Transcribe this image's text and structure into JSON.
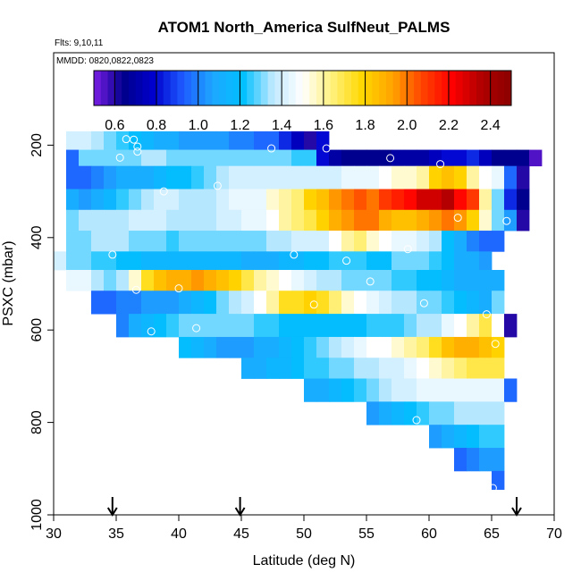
{
  "chart_data": {
    "type": "heatmap",
    "title": "ATOM1 North_America SulfNeut_PALMS",
    "subtitle": "Flts: 9,10,11",
    "annotation": "MMDD: 0820,0822,0823",
    "xlabel": "Latitude (deg N)",
    "ylabel": "PSXC (mbar)",
    "xlim": [
      30,
      70
    ],
    "ylim": [
      1000,
      0
    ],
    "x_ticks": [
      30,
      35,
      40,
      45,
      50,
      55,
      60,
      65,
      70
    ],
    "y_ticks": [
      200,
      400,
      600,
      800,
      1000
    ],
    "colorbar": {
      "range": [
        0.5,
        2.5
      ],
      "ticks": [
        0.6,
        0.8,
        1.0,
        1.2,
        1.4,
        1.6,
        1.8,
        2.0,
        2.2,
        2.4
      ],
      "colors": [
        "#7b1fe6",
        "#00008b",
        "#0000cd",
        "#1e5bff",
        "#1ea8ff",
        "#00bfff",
        "#bfe9ff",
        "#ffffff",
        "#fff07a",
        "#ffd700",
        "#ffa500",
        "#ff4500",
        "#ff0000",
        "#b00000",
        "#8b0000"
      ]
    },
    "flight_markers_lat": [
      34.7,
      44.9,
      67.0
    ],
    "bands": [
      {
        "p": [
          170,
          210
        ],
        "lats": [
          31.5,
          32.5,
          33.5,
          34.5,
          35.5,
          36.5,
          37.5,
          38.5,
          39.5,
          40.5,
          41.5,
          42.5,
          43.5,
          44.5,
          45.5,
          46.5,
          47.5,
          48.5,
          49.5,
          50.5,
          51.5
        ],
        "values": [
          1.4,
          1.4,
          1.35,
          1.3,
          1.25,
          1.2,
          1.15,
          1.1,
          1.1,
          1.05,
          1.05,
          1.05,
          1.05,
          1.0,
          1.0,
          0.95,
          0.95,
          0.85,
          0.75,
          0.6,
          0.8
        ]
      },
      {
        "p": [
          210,
          245
        ],
        "lats": [
          31.5,
          32.5,
          33.5,
          34.5,
          35.5,
          36.5,
          37.5,
          38.5,
          39.5,
          40.5,
          41.5,
          42.5,
          43.5,
          44.5,
          45.5,
          46.5,
          47.5,
          48.5,
          49.5,
          50.5,
          51.5,
          52.5,
          53.5,
          54.5,
          55.5,
          56.5,
          57.5,
          58.5,
          59.5,
          60.5,
          61.5,
          62.5,
          63.5,
          64.5,
          65.5,
          66.5,
          67.5,
          68.5
        ],
        "values": [
          0.95,
          1.3,
          1.3,
          1.3,
          1.3,
          1.3,
          1.35,
          1.35,
          1.3,
          1.3,
          1.3,
          1.3,
          1.3,
          1.3,
          1.3,
          1.3,
          1.3,
          1.3,
          1.25,
          1.25,
          0.8,
          0.7,
          0.65,
          0.65,
          0.65,
          0.65,
          0.7,
          0.7,
          0.7,
          0.75,
          0.8,
          0.8,
          0.85,
          0.75,
          0.65,
          0.65,
          0.65,
          0.55
        ]
      },
      {
        "p": [
          245,
          295
        ],
        "lats": [
          31.5,
          32.5,
          33.5,
          34.5,
          35.5,
          36.5,
          37.5,
          38.5,
          39.5,
          40.5,
          41.5,
          42.5,
          43.5,
          44.5,
          45.5,
          46.5,
          47.5,
          48.5,
          49.5,
          50.5,
          51.5,
          52.5,
          53.5,
          54.5,
          55.5,
          56.5,
          57.5,
          58.5,
          59.5,
          60.5,
          61.5,
          62.5,
          63.5,
          64.5,
          65.5,
          66.5,
          67.5
        ],
        "values": [
          0.95,
          0.95,
          1.0,
          1.05,
          1.1,
          1.1,
          1.1,
          1.15,
          1.2,
          1.2,
          1.25,
          1.3,
          1.35,
          1.4,
          1.4,
          1.4,
          1.4,
          1.4,
          1.4,
          1.4,
          1.4,
          1.4,
          1.45,
          1.45,
          1.45,
          1.5,
          1.55,
          1.55,
          1.6,
          1.8,
          1.85,
          1.8,
          1.6,
          1.5,
          1.45,
          0.95,
          0.6
        ]
      },
      {
        "p": [
          295,
          340
        ],
        "lats": [
          31.5,
          32.5,
          33.5,
          34.5,
          35.5,
          36.5,
          37.5,
          38.5,
          39.5,
          40.5,
          41.5,
          42.5,
          43.5,
          44.5,
          45.5,
          46.5,
          47.5,
          48.5,
          49.5,
          50.5,
          51.5,
          52.5,
          53.5,
          54.5,
          55.5,
          56.5,
          57.5,
          58.5,
          59.5,
          60.5,
          61.5,
          62.5,
          63.5,
          64.5,
          65.5,
          66.5,
          67.5
        ],
        "values": [
          1.1,
          1.05,
          1.1,
          1.15,
          1.25,
          1.3,
          1.35,
          1.4,
          1.4,
          1.35,
          1.35,
          1.35,
          1.4,
          1.45,
          1.45,
          1.45,
          1.55,
          1.6,
          1.65,
          1.8,
          1.85,
          1.95,
          2.0,
          2.05,
          2.0,
          2.1,
          2.15,
          2.2,
          2.3,
          2.3,
          2.35,
          2.2,
          2.1,
          1.6,
          1.3,
          0.85,
          0.65
        ]
      },
      {
        "p": [
          340,
          385
        ],
        "lats": [
          31.5,
          32.5,
          33.5,
          34.5,
          35.5,
          36.5,
          37.5,
          38.5,
          39.5,
          40.5,
          41.5,
          42.5,
          43.5,
          44.5,
          45.5,
          46.5,
          47.5,
          48.5,
          49.5,
          50.5,
          51.5,
          52.5,
          53.5,
          54.5,
          55.5,
          56.5,
          57.5,
          58.5,
          59.5,
          60.5,
          61.5,
          62.5,
          63.5,
          64.5,
          65.5,
          66.5,
          67.5
        ],
        "values": [
          1.3,
          1.35,
          1.35,
          1.35,
          1.35,
          1.4,
          1.4,
          1.4,
          1.35,
          1.35,
          1.35,
          1.35,
          1.4,
          1.4,
          1.45,
          1.45,
          1.5,
          1.6,
          1.65,
          1.7,
          1.8,
          1.9,
          1.95,
          2.0,
          2.0,
          1.9,
          1.85,
          1.85,
          1.9,
          1.95,
          2.0,
          1.95,
          1.8,
          1.55,
          1.3,
          1.05,
          0.6
        ]
      },
      {
        "p": [
          385,
          430
        ],
        "lats": [
          31.5,
          32.5,
          33.5,
          34.5,
          35.5,
          36.5,
          37.5,
          38.5,
          39.5,
          40.5,
          41.5,
          42.5,
          43.5,
          44.5,
          45.5,
          46.5,
          47.5,
          48.5,
          49.5,
          50.5,
          51.5,
          52.5,
          53.5,
          54.5,
          55.5,
          56.5,
          57.5,
          58.5,
          59.5,
          60.5,
          61.5,
          62.5,
          63.5,
          64.5,
          65.5
        ],
        "values": [
          1.3,
          1.3,
          1.35,
          1.35,
          1.35,
          1.3,
          1.3,
          1.3,
          1.25,
          1.3,
          1.3,
          1.3,
          1.3,
          1.3,
          1.3,
          1.3,
          1.35,
          1.35,
          1.4,
          1.4,
          1.4,
          1.5,
          1.6,
          1.65,
          1.55,
          1.5,
          1.45,
          1.45,
          1.4,
          1.35,
          1.2,
          1.1,
          1.0,
          0.95,
          0.95
        ]
      },
      {
        "p": [
          430,
          470
        ],
        "lats": [
          30.5,
          31.5,
          32.5,
          33.5,
          34.5,
          35.5,
          36.5,
          37.5,
          38.5,
          39.5,
          40.5,
          41.5,
          42.5,
          43.5,
          44.5,
          45.5,
          46.5,
          47.5,
          48.5,
          49.5,
          50.5,
          51.5,
          52.5,
          53.5,
          54.5,
          55.5,
          56.5,
          57.5,
          58.5,
          59.5,
          60.5,
          61.5,
          62.5,
          63.5,
          64.5
        ],
        "values": [
          1.4,
          1.3,
          1.3,
          1.25,
          1.25,
          1.2,
          1.2,
          1.15,
          1.15,
          1.15,
          1.15,
          1.15,
          1.15,
          1.15,
          1.15,
          1.1,
          1.1,
          1.1,
          1.15,
          1.15,
          1.2,
          1.2,
          1.25,
          1.25,
          1.25,
          1.2,
          1.2,
          1.3,
          1.3,
          1.3,
          1.25,
          1.2,
          1.1,
          1.1,
          1.05
        ]
      },
      {
        "p": [
          470,
          515
        ],
        "lats": [
          31.5,
          32.5,
          33.5,
          34.5,
          35.5,
          36.5,
          37.5,
          38.5,
          39.5,
          40.5,
          41.5,
          42.5,
          43.5,
          44.5,
          45.5,
          46.5,
          47.5,
          48.5,
          49.5,
          50.5,
          51.5,
          52.5,
          53.5,
          54.5,
          55.5,
          56.5,
          57.5,
          58.5,
          59.5,
          60.5,
          61.5,
          62.5,
          63.5,
          64.5,
          65.5
        ],
        "values": [
          1.45,
          1.45,
          1.35,
          1.3,
          1.35,
          1.55,
          1.75,
          1.85,
          1.9,
          1.9,
          1.95,
          1.9,
          1.85,
          1.8,
          1.7,
          1.6,
          1.55,
          1.5,
          1.45,
          1.4,
          1.35,
          1.35,
          1.3,
          1.3,
          1.3,
          1.3,
          1.25,
          1.25,
          1.2,
          1.2,
          1.15,
          1.1,
          1.1,
          1.1,
          1.1
        ]
      },
      {
        "p": [
          515,
          565
        ],
        "lats": [
          33.5,
          34.5,
          35.5,
          36.5,
          37.5,
          38.5,
          39.5,
          40.5,
          41.5,
          42.5,
          43.5,
          44.5,
          45.5,
          46.5,
          47.5,
          48.5,
          49.5,
          50.5,
          51.5,
          52.5,
          53.5,
          54.5,
          55.5,
          56.5,
          57.5,
          58.5,
          59.5,
          60.5,
          61.5,
          62.5,
          63.5,
          64.5,
          65.5
        ],
        "values": [
          0.95,
          0.95,
          1.0,
          1.0,
          1.05,
          1.05,
          1.05,
          1.1,
          1.15,
          1.2,
          1.3,
          1.35,
          1.4,
          1.5,
          1.6,
          1.75,
          1.75,
          1.8,
          1.75,
          1.65,
          1.55,
          1.5,
          1.45,
          1.4,
          1.35,
          1.35,
          1.3,
          1.3,
          1.25,
          1.2,
          1.15,
          1.1,
          1.3
        ]
      },
      {
        "p": [
          565,
          615
        ],
        "lats": [
          35.5,
          36.5,
          37.5,
          38.5,
          39.5,
          40.5,
          41.5,
          42.5,
          43.5,
          44.5,
          45.5,
          46.5,
          47.5,
          48.5,
          49.5,
          50.5,
          51.5,
          52.5,
          53.5,
          54.5,
          55.5,
          56.5,
          57.5,
          58.5,
          59.5,
          60.5,
          61.5,
          62.5,
          63.5,
          64.5,
          65.5,
          66.5
        ],
        "values": [
          1.0,
          1.1,
          1.15,
          1.2,
          1.25,
          1.3,
          1.3,
          1.3,
          1.3,
          1.3,
          1.3,
          1.25,
          1.25,
          1.2,
          1.2,
          1.2,
          1.2,
          1.2,
          1.2,
          1.2,
          1.25,
          1.25,
          1.25,
          1.3,
          1.35,
          1.35,
          1.45,
          1.5,
          1.6,
          1.7,
          1.5,
          0.6
        ]
      },
      {
        "p": [
          615,
          660
        ],
        "lats": [
          40.5,
          41.5,
          42.5,
          43.5,
          44.5,
          45.5,
          46.5,
          47.5,
          48.5,
          49.5,
          50.5,
          51.5,
          52.5,
          53.5,
          54.5,
          55.5,
          56.5,
          57.5,
          58.5,
          59.5,
          60.5,
          61.5,
          62.5,
          63.5,
          64.5,
          65.5
        ],
        "values": [
          1.2,
          1.15,
          1.1,
          1.05,
          1.05,
          1.05,
          1.1,
          1.1,
          1.15,
          1.2,
          1.25,
          1.3,
          1.35,
          1.4,
          1.45,
          1.5,
          1.5,
          1.55,
          1.6,
          1.65,
          1.75,
          1.85,
          1.9,
          1.9,
          1.85,
          1.8
        ]
      },
      {
        "p": [
          660,
          705
        ],
        "lats": [
          45.5,
          46.5,
          47.5,
          48.5,
          49.5,
          50.5,
          51.5,
          52.5,
          53.5,
          54.5,
          55.5,
          56.5,
          57.5,
          58.5,
          59.5,
          60.5,
          61.5,
          62.5,
          63.5,
          64.5,
          65.5
        ],
        "values": [
          1.1,
          1.1,
          1.15,
          1.15,
          1.2,
          1.25,
          1.25,
          1.3,
          1.3,
          1.35,
          1.35,
          1.4,
          1.4,
          1.45,
          1.5,
          1.55,
          1.6,
          1.65,
          1.7,
          1.7,
          1.7
        ]
      },
      {
        "p": [
          705,
          755
        ],
        "lats": [
          50.5,
          51.5,
          52.5,
          53.5,
          54.5,
          55.5,
          56.5,
          57.5,
          58.5,
          59.5,
          60.5,
          61.5,
          62.5,
          63.5,
          64.5,
          65.5,
          66.5
        ],
        "values": [
          1.1,
          1.1,
          1.15,
          1.2,
          1.25,
          1.3,
          1.35,
          1.4,
          1.4,
          1.45,
          1.45,
          1.45,
          1.45,
          1.45,
          1.45,
          1.45,
          0.95
        ]
      },
      {
        "p": [
          755,
          805
        ],
        "lats": [
          55.5,
          56.5,
          57.5,
          58.5,
          59.5,
          60.5,
          61.5,
          62.5,
          63.5,
          64.5,
          65.5
        ],
        "values": [
          1.05,
          1.1,
          1.15,
          1.2,
          1.25,
          1.3,
          1.3,
          1.35,
          1.35,
          1.35,
          1.35
        ]
      },
      {
        "p": [
          805,
          855
        ],
        "lats": [
          60.5,
          61.5,
          62.5,
          63.5,
          64.5,
          65.5
        ],
        "values": [
          1.05,
          1.1,
          1.15,
          1.2,
          1.25,
          1.25
        ]
      },
      {
        "p": [
          855,
          905
        ],
        "lats": [
          62.5,
          63.5,
          64.5,
          65.5
        ],
        "values": [
          0.95,
          1.0,
          1.05,
          1.05
        ]
      },
      {
        "p": [
          905,
          945
        ],
        "lats": [
          65.5
        ],
        "values": [
          0.95
        ]
      }
    ],
    "sample_points": [
      {
        "lat": 35.8,
        "p": 187
      },
      {
        "lat": 36.4,
        "p": 188
      },
      {
        "lat": 36.7,
        "p": 203
      },
      {
        "lat": 36.7,
        "p": 214
      },
      {
        "lat": 35.3,
        "p": 227
      },
      {
        "lat": 47.4,
        "p": 207
      },
      {
        "lat": 51.8,
        "p": 207
      },
      {
        "lat": 56.9,
        "p": 228
      },
      {
        "lat": 60.9,
        "p": 241
      },
      {
        "lat": 70.0,
        "p": 225
      },
      {
        "lat": 38.8,
        "p": 300
      },
      {
        "lat": 43.1,
        "p": 288
      },
      {
        "lat": 62.3,
        "p": 357
      },
      {
        "lat": 66.2,
        "p": 364
      },
      {
        "lat": 34.7,
        "p": 437
      },
      {
        "lat": 58.3,
        "p": 425
      },
      {
        "lat": 49.2,
        "p": 437
      },
      {
        "lat": 53.4,
        "p": 450
      },
      {
        "lat": 55.3,
        "p": 495
      },
      {
        "lat": 36.6,
        "p": 513
      },
      {
        "lat": 40.0,
        "p": 510
      },
      {
        "lat": 46.3,
        "p": 525
      },
      {
        "lat": 50.8,
        "p": 545
      },
      {
        "lat": 59.6,
        "p": 542
      },
      {
        "lat": 64.6,
        "p": 566
      },
      {
        "lat": 37.8,
        "p": 603
      },
      {
        "lat": 41.4,
        "p": 596
      },
      {
        "lat": 65.3,
        "p": 630
      },
      {
        "lat": 59.0,
        "p": 795
      },
      {
        "lat": 65.1,
        "p": 942
      }
    ]
  }
}
